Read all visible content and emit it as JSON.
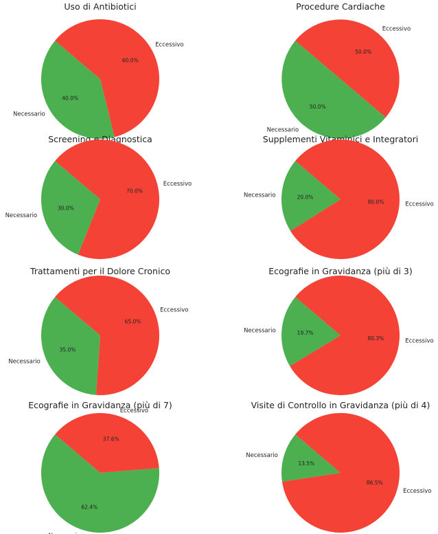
{
  "colors": {
    "Necessario": "#4caf50",
    "Eccessivo": "#f44336"
  },
  "chart_data": [
    {
      "type": "pie",
      "title": "Uso di Antibiotici",
      "startangle": 140,
      "slices": [
        {
          "label": "Necessario",
          "value": 40.0,
          "pct_label": "40.0%"
        },
        {
          "label": "Eccessivo",
          "value": 60.0,
          "pct_label": "60.0%"
        }
      ]
    },
    {
      "type": "pie",
      "title": "Procedure Cardiache",
      "startangle": 140,
      "slices": [
        {
          "label": "Necessario",
          "value": 50.0,
          "pct_label": "50.0%"
        },
        {
          "label": "Eccessivo",
          "value": 50.0,
          "pct_label": "50.0%"
        }
      ]
    },
    {
      "type": "pie",
      "title": "Screening e Diagnostica",
      "startangle": 140,
      "slices": [
        {
          "label": "Necessario",
          "value": 30.0,
          "pct_label": "30.0%"
        },
        {
          "label": "Eccessivo",
          "value": 70.0,
          "pct_label": "70.0%"
        }
      ]
    },
    {
      "type": "pie",
      "title": "Supplementi Vitaminici e Integratori",
      "startangle": 140,
      "slices": [
        {
          "label": "Necessario",
          "value": 20.0,
          "pct_label": "20.0%"
        },
        {
          "label": "Eccessivo",
          "value": 80.0,
          "pct_label": "80.0%"
        }
      ]
    },
    {
      "type": "pie",
      "title": "Trattamenti per il Dolore Cronico",
      "startangle": 140,
      "slices": [
        {
          "label": "Necessario",
          "value": 35.0,
          "pct_label": "35.0%"
        },
        {
          "label": "Eccessivo",
          "value": 65.0,
          "pct_label": "65.0%"
        }
      ]
    },
    {
      "type": "pie",
      "title": "Ecografie in Gravidanza (più di 3)",
      "startangle": 140,
      "slices": [
        {
          "label": "Necessario",
          "value": 19.7,
          "pct_label": "19.7%"
        },
        {
          "label": "Eccessivo",
          "value": 80.3,
          "pct_label": "80.3%"
        }
      ]
    },
    {
      "type": "pie",
      "title": "Ecografie in Gravidanza (più di 7)",
      "startangle": 140,
      "slices": [
        {
          "label": "Necessario",
          "value": 62.4,
          "pct_label": "62.4%"
        },
        {
          "label": "Eccessivo",
          "value": 37.6,
          "pct_label": "37.6%"
        }
      ]
    },
    {
      "type": "pie",
      "title": "Visite di Controllo in Gravidanza (più di 4)",
      "startangle": 140,
      "slices": [
        {
          "label": "Necessario",
          "value": 13.5,
          "pct_label": "13.5%"
        },
        {
          "label": "Eccessivo",
          "value": 86.5,
          "pct_label": "86.5%"
        }
      ]
    }
  ]
}
